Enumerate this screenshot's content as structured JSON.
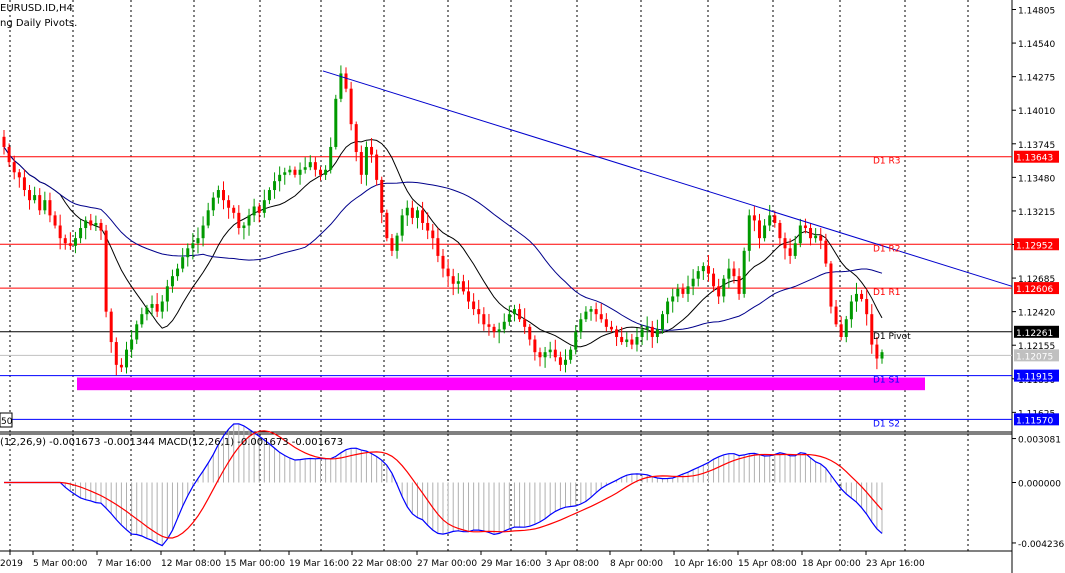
{
  "window": {
    "symbol_title": "EURUSD.ID,H4",
    "subtitle": "ng Daily Pivots.",
    "ma_tag": "50",
    "macd_title": "(12,26,9) -0.001673 -0.001344 MACD(12,26,1) -0.001673 -0.001673"
  },
  "chart_data": {
    "type": "candlestick",
    "symbol": "EURUSD.ID",
    "timeframe": "H4",
    "price_axis_ticks": [
      "1.14805",
      "1.14540",
      "1.14275",
      "1.14010",
      "1.13745",
      "1.13480",
      "1.13215",
      "1.12950",
      "1.12685",
      "1.12420",
      "1.12155",
      "1.11890",
      "1.11625"
    ],
    "ylim": [
      1.1147,
      1.1488
    ],
    "time_labels": [
      "2019",
      "5 Mar 00:00",
      "7 Mar 16:00",
      "12 Mar 08:00",
      "15 Mar 00:00",
      "19 Mar 16:00",
      "22 Mar 08:00",
      "27 Mar 00:00",
      "29 Mar 16:00",
      "3 Apr 08:00",
      "8 Apr 00:00",
      "10 Apr 16:00",
      "15 Apr 08:00",
      "18 Apr 00:00",
      "23 Apr 16:00"
    ],
    "pivots": [
      {
        "label": "D1 R3",
        "price_label": "1.13643",
        "value": 1.13643,
        "color": "#ff0000"
      },
      {
        "label": "D1 R2",
        "price_label": "1.12952",
        "value": 1.12952,
        "color": "#ff0000"
      },
      {
        "label": "D1 R1",
        "price_label": "1.12606",
        "value": 1.12606,
        "color": "#ff0000"
      },
      {
        "label": "D1 Pivot",
        "price_label": "1.12261",
        "value": 1.12261,
        "color": "#000000"
      },
      {
        "label": "D1 S1",
        "price_label": "1.11915",
        "value": 1.11915,
        "color": "#0000ff"
      },
      {
        "label": "D1 S2",
        "price_label": "1.11570",
        "value": 1.1157,
        "color": "#0000ff"
      }
    ],
    "current_price_label": "1.12075",
    "current_price": 1.12075,
    "support_zone": [
      1.118,
      1.119
    ],
    "trendline": {
      "from": {
        "time": "19 Mar 16:00",
        "price": 1.1432
      },
      "to": {
        "time": "24 Apr",
        "price": 1.1262
      }
    },
    "candle_closes": [
      1.1372,
      1.136,
      1.1352,
      1.1348,
      1.1338,
      1.133,
      1.1334,
      1.1322,
      1.133,
      1.1318,
      1.131,
      1.13,
      1.1296,
      1.1294,
      1.13,
      1.1308,
      1.1314,
      1.131,
      1.1312,
      1.1306,
      1.1242,
      1.1218,
      1.12,
      1.1198,
      1.1212,
      1.122,
      1.1232,
      1.124,
      1.1245,
      1.1248,
      1.1242,
      1.125,
      1.1262,
      1.127,
      1.1276,
      1.1285,
      1.1292,
      1.1296,
      1.13,
      1.131,
      1.1322,
      1.1332,
      1.1338,
      1.133,
      1.1324,
      1.132,
      1.1308,
      1.131,
      1.1318,
      1.1325,
      1.132,
      1.133,
      1.1338,
      1.1345,
      1.135,
      1.1352,
      1.1354,
      1.135,
      1.1354,
      1.1356,
      1.136,
      1.1354,
      1.135,
      1.1354,
      1.1372,
      1.141,
      1.143,
      1.1418,
      1.139,
      1.1368,
      1.135,
      1.1372,
      1.1366,
      1.1346,
      1.132,
      1.13,
      1.129,
      1.1302,
      1.1318,
      1.1324,
      1.1316,
      1.1322,
      1.1312,
      1.1306,
      1.13,
      1.1286,
      1.1276,
      1.127,
      1.1264,
      1.1266,
      1.1258,
      1.125,
      1.1244,
      1.124,
      1.1232,
      1.123,
      1.1226,
      1.1228,
      1.1234,
      1.124,
      1.1244,
      1.1236,
      1.123,
      1.122,
      1.121,
      1.1206,
      1.121,
      1.1212,
      1.1206,
      1.12,
      1.1204,
      1.1212,
      1.1226,
      1.1236,
      1.1242,
      1.1244,
      1.124,
      1.1236,
      1.123,
      1.1228,
      1.1222,
      1.1218,
      1.122,
      1.1216,
      1.1222,
      1.1228,
      1.123,
      1.1222,
      1.1228,
      1.124,
      1.125,
      1.1254,
      1.126,
      1.1256,
      1.1262,
      1.1268,
      1.1274,
      1.1278,
      1.1272,
      1.1262,
      1.1254,
      1.1268,
      1.1276,
      1.127,
      1.1256,
      1.129,
      1.1318,
      1.1314,
      1.13,
      1.131,
      1.1318,
      1.1312,
      1.13,
      1.1292,
      1.1286,
      1.1296,
      1.131,
      1.1308,
      1.13,
      1.1302,
      1.1298,
      1.128,
      1.1246,
      1.1232,
      1.1222,
      1.1236,
      1.125,
      1.1256,
      1.1252,
      1.124,
      1.1216,
      1.1205,
      1.121
    ],
    "ma_fast_color": "#000000",
    "ma_slow_color": "#00008b",
    "macd": {
      "ticks": [
        "0.003081",
        "0.000000",
        "-0.004236"
      ],
      "ylim": [
        -0.0048,
        0.0034
      ],
      "main_color": "#0000ff",
      "signal_color": "#ff0000",
      "histogram_color": "#b0b0b0"
    }
  }
}
